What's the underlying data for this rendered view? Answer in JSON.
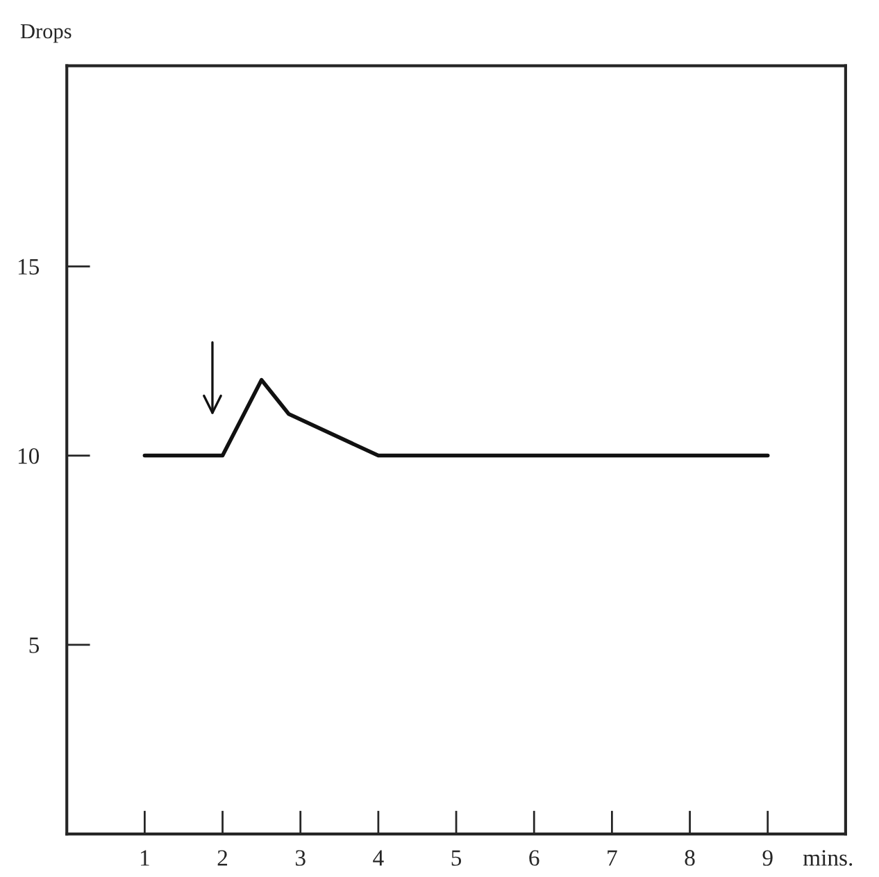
{
  "chart_data": {
    "type": "line",
    "xlabel": "mins.",
    "ylabel": "Drops",
    "x": [
      1,
      2,
      2.5,
      2.85,
      4,
      9
    ],
    "series": [
      {
        "color": "#111111",
        "values": [
          10,
          10,
          12,
          11.1,
          10,
          10
        ]
      }
    ],
    "xlim": [
      0,
      10
    ],
    "ylim": [
      0,
      20.3
    ],
    "xticks": [
      1,
      2,
      3,
      4,
      5,
      6,
      7,
      8,
      9
    ],
    "yticks": [
      5,
      10,
      15
    ],
    "grid": false,
    "legend": false,
    "marker": "none",
    "line_style": "solid"
  }
}
